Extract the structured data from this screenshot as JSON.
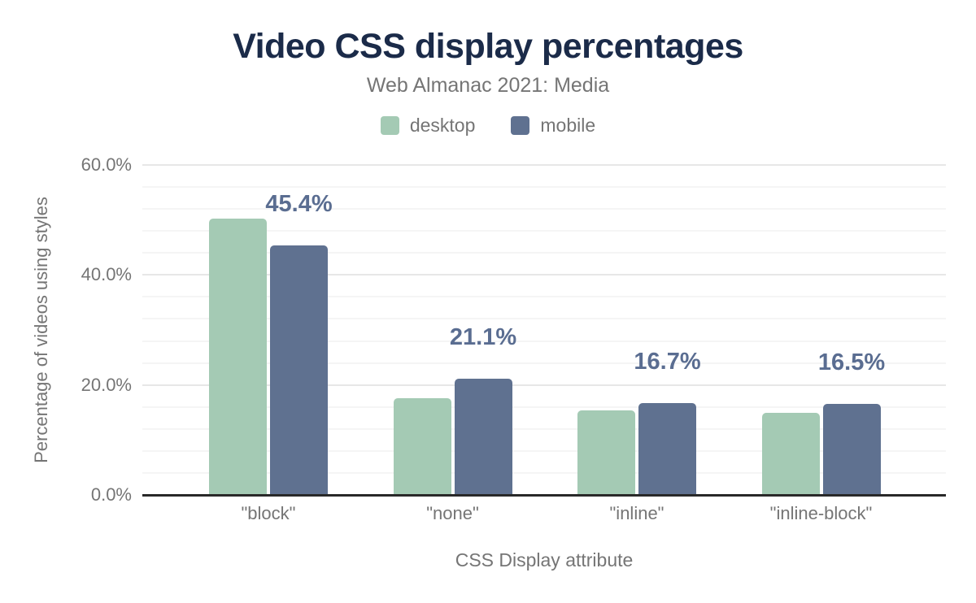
{
  "chart_data": {
    "type": "bar",
    "title": "Video CSS display percentages",
    "subtitle": "Web Almanac 2021: Media",
    "categories": [
      "\"block\"",
      "\"none\"",
      "\"inline\"",
      "\"inline-block\""
    ],
    "series": [
      {
        "name": "desktop",
        "color": "#a4cab4",
        "values": [
          50.2,
          17.6,
          15.4,
          14.9
        ]
      },
      {
        "name": "mobile",
        "color": "#5f7190",
        "values": [
          45.4,
          21.1,
          16.7,
          16.5
        ]
      }
    ],
    "data_labels": [
      "45.4%",
      "21.1%",
      "16.7%",
      "16.5%"
    ],
    "data_labels_series": "mobile",
    "xlabel": "CSS Display attribute",
    "ylabel": "Percentage of videos using styles",
    "ylim": [
      0,
      60
    ],
    "y_ticks": [
      "0.0%",
      "20.0%",
      "40.0%",
      "60.0%"
    ],
    "y_major_step": 20,
    "y_minor_step": 4,
    "grid": "horizontal-on",
    "legend_position": "top-center"
  },
  "colors": {
    "title": "#1b2b49",
    "muted_text": "#757575",
    "data_label": "#5a6d91",
    "axis_line": "#292929",
    "grid_major": "#e7e7e7",
    "grid_minor": "#f5f5f5"
  }
}
